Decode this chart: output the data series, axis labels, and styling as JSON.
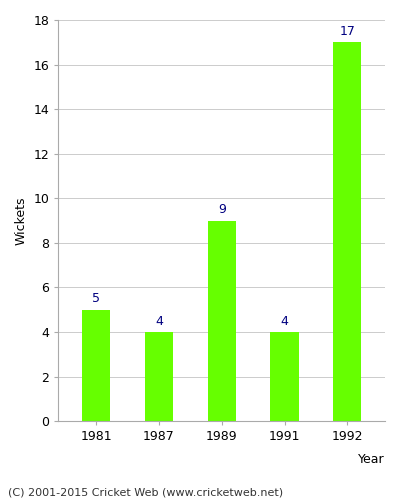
{
  "years": [
    "1981",
    "1987",
    "1989",
    "1991",
    "1992"
  ],
  "values": [
    5,
    4,
    9,
    4,
    17
  ],
  "bar_color": "#66ff00",
  "bar_edge_color": "#66ff00",
  "label_color": "#000080",
  "ylabel": "Wickets",
  "xlabel": "Year",
  "ylim": [
    0,
    18
  ],
  "yticks": [
    0,
    2,
    4,
    6,
    8,
    10,
    12,
    14,
    16,
    18
  ],
  "footnote": "(C) 2001-2015 Cricket Web (www.cricketweb.net)",
  "footnote_color": "#333333",
  "grid_color": "#cccccc",
  "background_color": "#ffffff",
  "label_fontsize": 9,
  "tick_fontsize": 9,
  "footnote_fontsize": 8,
  "value_label_fontsize": 9
}
